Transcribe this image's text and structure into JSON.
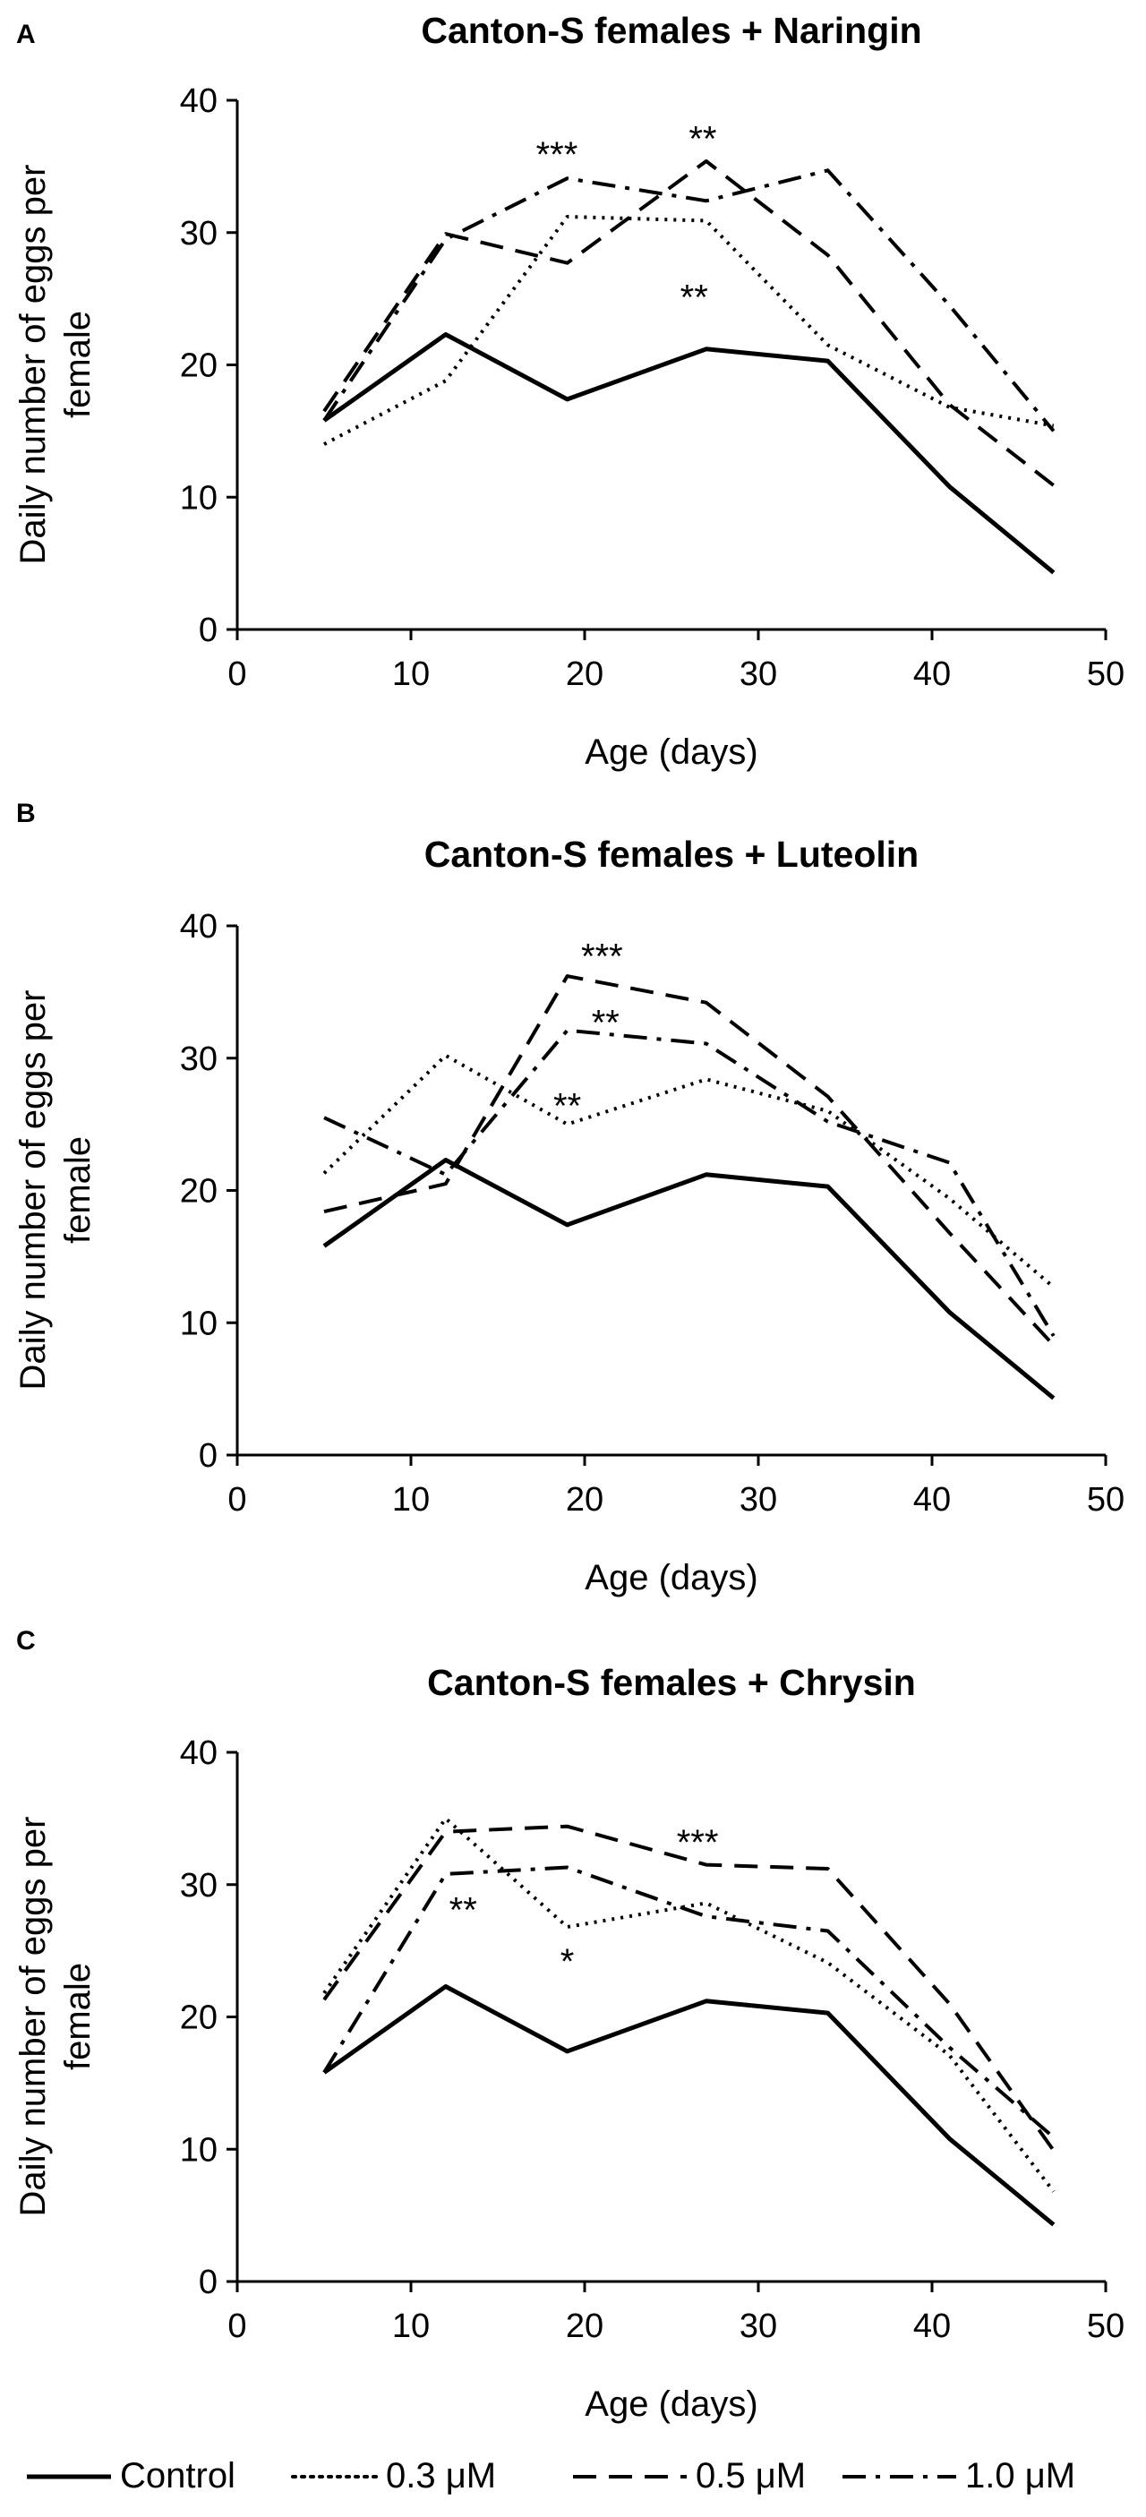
{
  "chart_data": [
    {
      "type": "line",
      "panel": "A",
      "title": "Canton-S females + Naringin",
      "xlabel": "Age (days)",
      "ylabel": "Daily number of eggs per female",
      "xlim": [
        0,
        50
      ],
      "ylim": [
        0,
        40
      ],
      "xticks": [
        0,
        10,
        20,
        30,
        40,
        50
      ],
      "yticks": [
        0,
        10,
        20,
        30,
        40
      ],
      "x": [
        5,
        12,
        19,
        27,
        34,
        41,
        47
      ],
      "series": [
        {
          "name": "Control",
          "style": "solid",
          "values": [
            15.8,
            22.3,
            17.4,
            21.2,
            20.3,
            10.8,
            4.3
          ]
        },
        {
          "name": "0.3 μM",
          "style": "dotted",
          "values": [
            14.0,
            18.8,
            31.2,
            30.9,
            21.5,
            16.8,
            15.4
          ]
        },
        {
          "name": "0.5 μM",
          "style": "dashed",
          "values": [
            16.5,
            29.9,
            27.7,
            35.4,
            28.3,
            17.0,
            10.9
          ]
        },
        {
          "name": "1.0 μM",
          "style": "dashdot",
          "values": [
            15.8,
            29.5,
            34.1,
            32.4,
            34.7,
            24.5,
            15.0
          ]
        }
      ],
      "annotations": [
        {
          "text": "***",
          "x": 18.4,
          "y": 36.0
        },
        {
          "text": "**",
          "x": 26.8,
          "y": 37.2
        },
        {
          "text": "**",
          "x": 26.3,
          "y": 25.2
        }
      ]
    },
    {
      "type": "line",
      "panel": "B",
      "title": "Canton-S females + Luteolin",
      "xlabel": "Age (days)",
      "ylabel": "Daily number of eggs per female",
      "xlim": [
        0,
        50
      ],
      "ylim": [
        0,
        40
      ],
      "xticks": [
        0,
        10,
        20,
        30,
        40,
        50
      ],
      "yticks": [
        0,
        10,
        20,
        30,
        40
      ],
      "x": [
        5,
        12,
        19,
        27,
        34,
        41,
        47
      ],
      "series": [
        {
          "name": "Control",
          "style": "solid",
          "values": [
            15.8,
            22.3,
            17.4,
            21.2,
            20.3,
            10.8,
            4.3
          ]
        },
        {
          "name": "0.3 μM",
          "style": "dotted",
          "values": [
            21.3,
            30.2,
            25.0,
            28.4,
            26.0,
            19.4,
            12.7
          ]
        },
        {
          "name": "0.5 μM",
          "style": "dashed",
          "values": [
            18.4,
            20.5,
            36.2,
            34.2,
            27.1,
            16.8,
            8.3
          ]
        },
        {
          "name": "1.0 μM",
          "style": "dashdot",
          "values": [
            25.5,
            21.2,
            32.1,
            31.1,
            25.2,
            22.1,
            9.0
          ]
        }
      ],
      "annotations": [
        {
          "text": "***",
          "x": 21.0,
          "y": 37.8
        },
        {
          "text": "**",
          "x": 21.2,
          "y": 32.8
        },
        {
          "text": "**",
          "x": 19.0,
          "y": 26.5
        }
      ]
    },
    {
      "type": "line",
      "panel": "C",
      "title": "Canton-S females + Chrysin",
      "xlabel": "Age (days)",
      "ylabel": "Daily number of eggs per female",
      "xlim": [
        0,
        50
      ],
      "ylim": [
        0,
        40
      ],
      "xticks": [
        0,
        10,
        20,
        30,
        40,
        50
      ],
      "yticks": [
        0,
        10,
        20,
        30,
        40
      ],
      "x": [
        5,
        12,
        19,
        27,
        34,
        41,
        47
      ],
      "series": [
        {
          "name": "Control",
          "style": "solid",
          "values": [
            15.8,
            22.3,
            17.4,
            21.2,
            20.3,
            10.8,
            4.3
          ]
        },
        {
          "name": "0.3 μM",
          "style": "dotted",
          "values": [
            21.8,
            35.0,
            26.8,
            28.6,
            24.1,
            17.1,
            6.8
          ]
        },
        {
          "name": "0.5 μM",
          "style": "dashed",
          "values": [
            21.3,
            34.0,
            34.4,
            31.5,
            31.2,
            21.0,
            9.9
          ]
        },
        {
          "name": "1.0 μM",
          "style": "dashdot",
          "values": [
            15.8,
            30.8,
            31.3,
            27.6,
            26.5,
            17.7,
            10.9
          ]
        }
      ],
      "annotations": [
        {
          "text": "***",
          "x": 26.5,
          "y": 33.3
        },
        {
          "text": "**",
          "x": 13.0,
          "y": 28.2
        },
        {
          "text": "*",
          "x": 19.0,
          "y": 24.3
        }
      ]
    }
  ],
  "legend": {
    "position": "bottom",
    "items": [
      {
        "label": "Control",
        "style": "solid"
      },
      {
        "label": "0.3 μM",
        "style": "dotted"
      },
      {
        "label": "0.5 μM",
        "style": "dashed"
      },
      {
        "label": "1.0 μM",
        "style": "dashdot"
      }
    ]
  }
}
